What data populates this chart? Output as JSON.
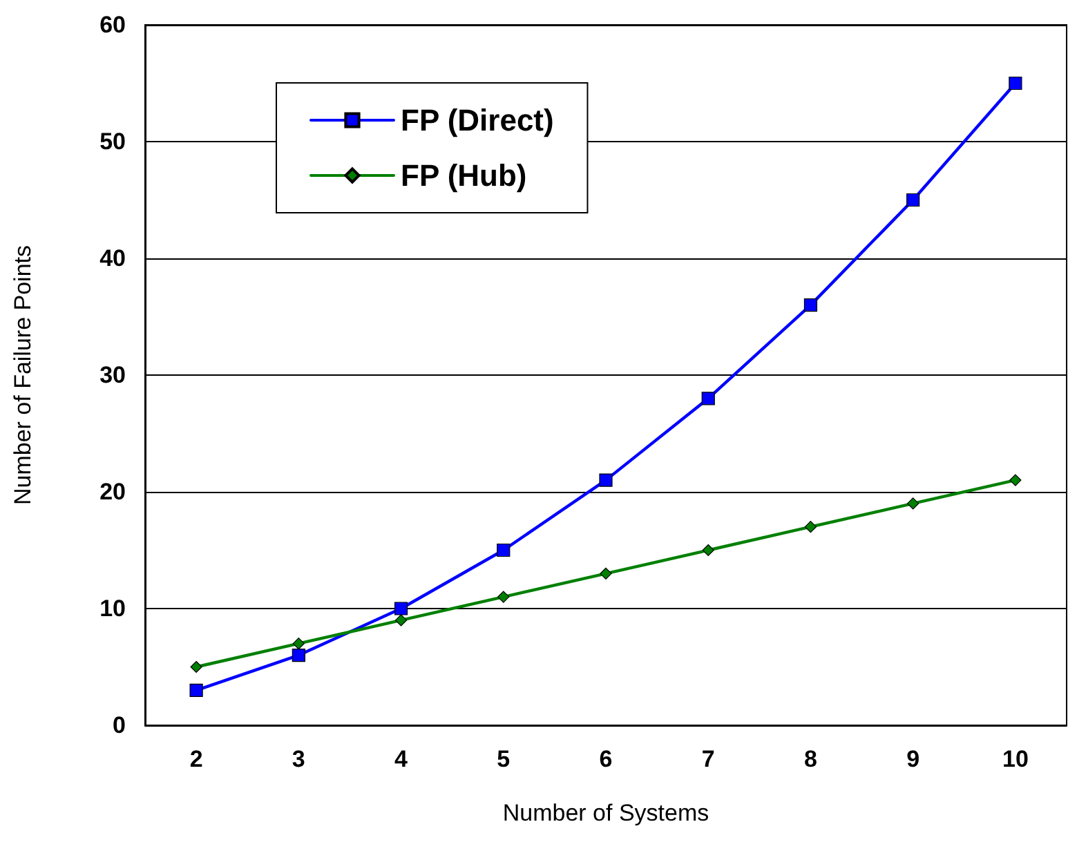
{
  "chart_data": {
    "type": "line",
    "xlabel": "Number of Systems",
    "ylabel": "Number of Failure Points",
    "categories": [
      "2",
      "3",
      "4",
      "5",
      "6",
      "7",
      "8",
      "9",
      "10"
    ],
    "series": [
      {
        "name": "FP (Direct)",
        "color": "#0000ff",
        "marker": "square",
        "values": [
          3,
          6,
          10,
          15,
          21,
          28,
          36,
          45,
          55
        ]
      },
      {
        "name": "FP (Hub)",
        "color": "#008000",
        "marker": "diamond",
        "values": [
          5,
          7,
          9,
          11,
          13,
          15,
          17,
          19,
          21
        ]
      }
    ],
    "ylim": [
      0,
      60
    ],
    "yticks": [
      0,
      10,
      20,
      30,
      40,
      50,
      60
    ],
    "grid": "y",
    "legend": "top left",
    "line_style": "solid"
  }
}
